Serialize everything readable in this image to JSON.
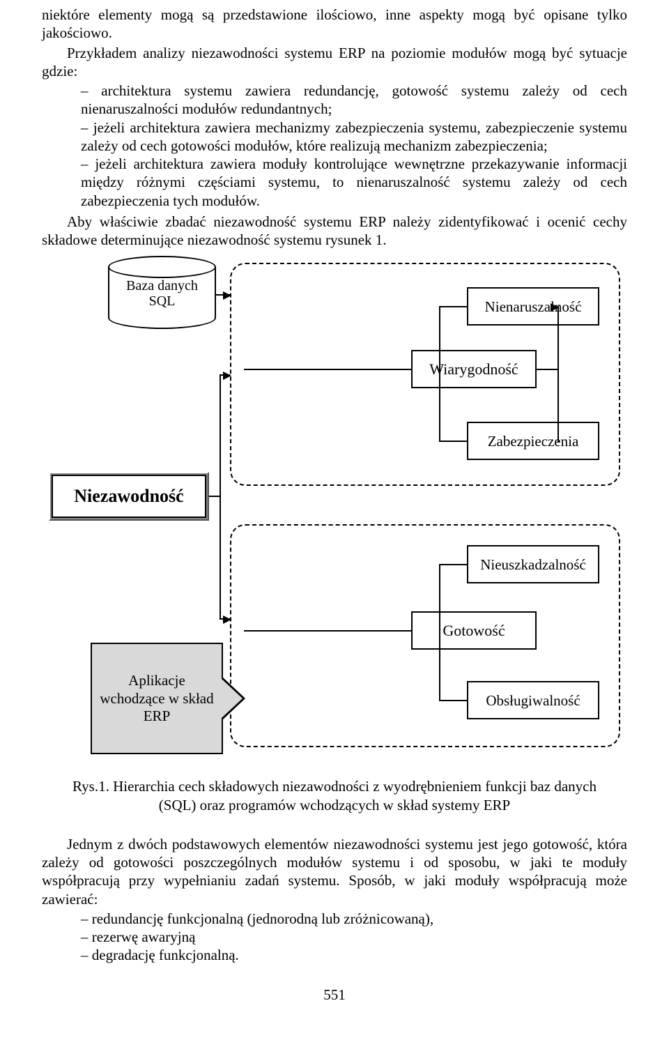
{
  "paragraphs": {
    "p1": "niektóre elementy mogą są przedstawione ilościowo, inne aspekty mogą być opisane tylko jakościowo.",
    "p2": "Przykładem analizy niezawodności systemu ERP na poziomie modułów mogą być sytuacje gdzie:",
    "p3": "Aby właściwie zbadać niezawodność systemu ERP należy zidentyfikować i ocenić cechy składowe determinujące niezawodność systemu rysunek 1.",
    "p4": "Jednym z dwóch podstawowych elementów niezawodności systemu jest jego gotowość, która zależy od gotowości poszczególnych modułów systemu i od sposobu, w jaki te moduły współpracują przy wypełnianiu zadań systemu. Sposób, w jaki moduły współpracują może zawierać:"
  },
  "bullets1": {
    "b1": "architektura systemu zawiera redundancję, gotowość systemu zależy od cech nienaruszalności modułów redundantnych;",
    "b2": "jeżeli architektura zawiera mechanizmy zabezpieczenia systemu, zabezpieczenie systemu zależy od cech gotowości modułów, które realizują mechanizm zabezpieczenia;",
    "b3": "jeżeli architektura zawiera moduły kontrolujące wewnętrzne przekazywanie informacji między różnymi częściami systemu, to nienaruszalność systemu zależy od cech zabezpieczenia tych modułów."
  },
  "bullets2": {
    "b1": "redundancję funkcjonalną (jednorodną lub zróżnicowaną),",
    "b2": "rezerwę awaryjną",
    "b3": "degradację funkcjonalną."
  },
  "diagram": {
    "type": "flowchart",
    "colors": {
      "line": "#000000",
      "box_fill": "#ffffff",
      "block_fill": "#d9d9d9",
      "frame_shadow": "#888888",
      "dash_border": "#000000"
    },
    "main_label": "Niezawodność",
    "db_label": "Baza danych\nSQL",
    "app_label": "Aplikacje wchodzące w skład ERP",
    "mid_top": "Wiarygodność",
    "mid_bottom": "Gotowość",
    "right1": "Nienaruszalność",
    "right2": "Zabezpieczenia",
    "right3": "Nieuszkadzalność",
    "right4": "Obsługiwalność"
  },
  "caption": "Rys.1. Hierarchia cech składowych niezawodności z wyodrębnieniem funkcji baz danych (SQL) oraz programów wchodzących w skład systemy ERP",
  "page_number": "551"
}
